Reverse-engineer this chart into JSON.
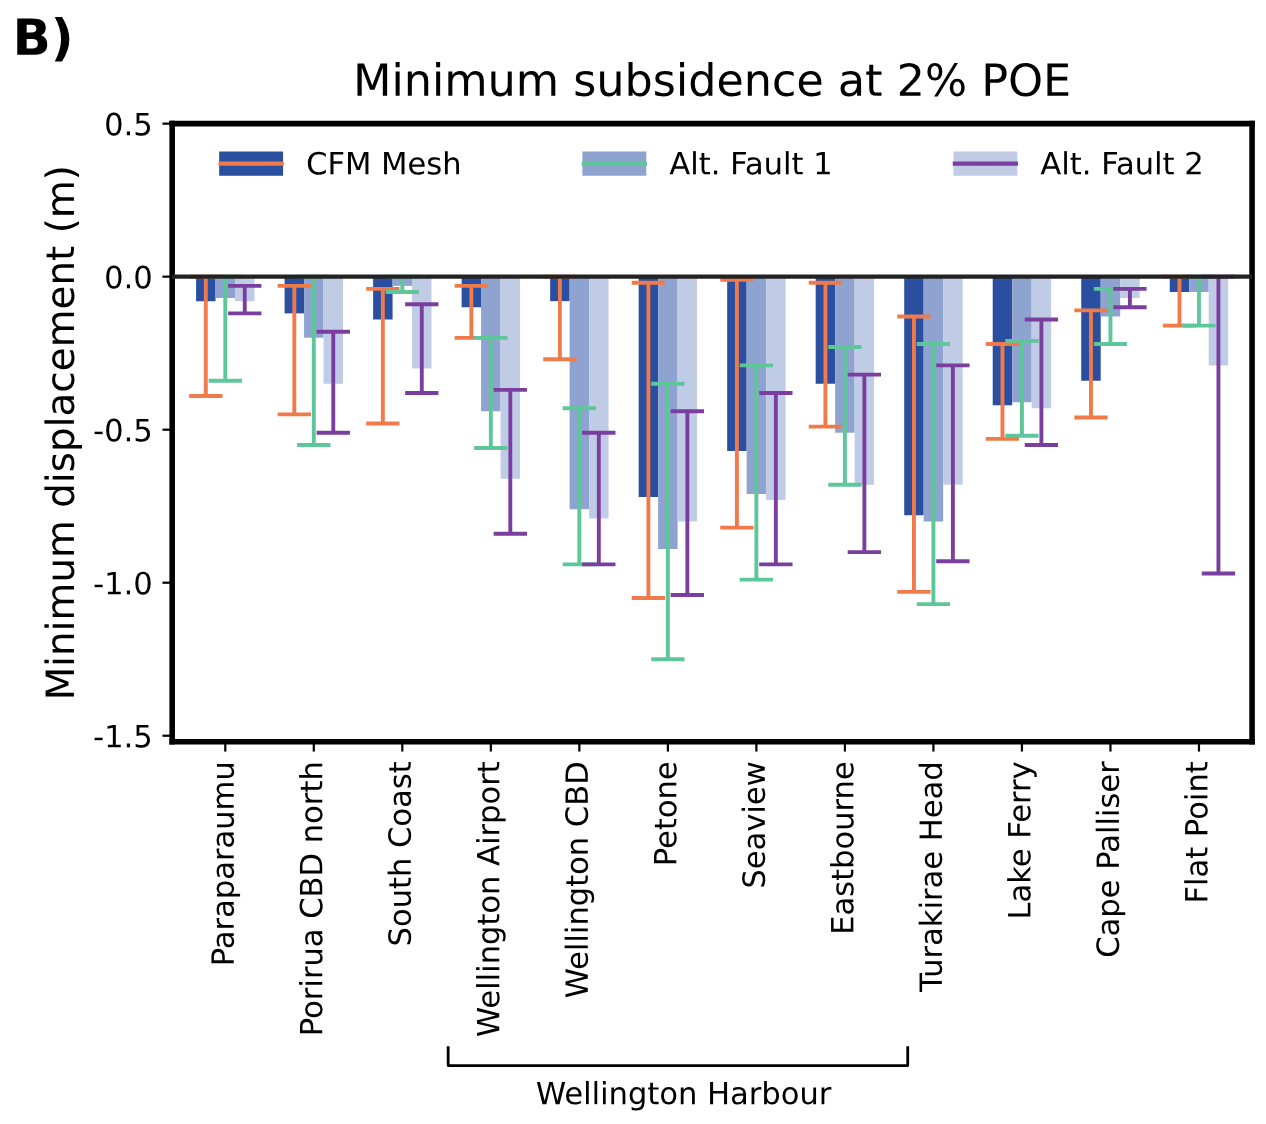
{
  "chart_data": {
    "type": "bar",
    "title": "Minimum subsidence at 2% POE",
    "ylabel": "Minimum displacement (m)",
    "categories": [
      "Paraparaumu",
      "Porirua CBD north",
      "South Coast",
      "Wellington Airport",
      "Wellington CBD",
      "Petone",
      "Seaview",
      "Eastbourne",
      "Turakirae Head",
      "Lake Ferry",
      "Cape Palliser",
      "Flat Point"
    ],
    "series": [
      {
        "name": "CFM Mesh",
        "color": "#2a4fa0",
        "values": [
          -0.08,
          -0.12,
          -0.14,
          -0.1,
          -0.08,
          -0.72,
          -0.57,
          -0.35,
          -0.78,
          -0.42,
          -0.34,
          -0.05
        ],
        "errors": [
          [
            -0.39,
            0
          ],
          [
            -0.45,
            -0.03
          ],
          [
            -0.48,
            -0.04
          ],
          [
            -0.2,
            -0.03
          ],
          [
            -0.27,
            0
          ],
          [
            -1.05,
            -0.02
          ],
          [
            -0.82,
            -0.01
          ],
          [
            -0.49,
            -0.02
          ],
          [
            -1.03,
            -0.13
          ],
          [
            -0.53,
            -0.22
          ],
          [
            -0.46,
            -0.11
          ],
          [
            -0.16,
            0
          ]
        ]
      },
      {
        "name": "Alt. Fault 1",
        "color": "#8fa3d0",
        "values": [
          -0.07,
          -0.2,
          -0.03,
          -0.44,
          -0.76,
          -0.89,
          -0.71,
          -0.51,
          -0.8,
          -0.41,
          -0.13,
          -0.05
        ],
        "errors": [
          [
            -0.34,
            0
          ],
          [
            -0.55,
            0
          ],
          [
            -0.05,
            0
          ],
          [
            -0.56,
            -0.2
          ],
          [
            -0.94,
            -0.43
          ],
          [
            -1.25,
            -0.35
          ],
          [
            -0.99,
            -0.29
          ],
          [
            -0.68,
            -0.23
          ],
          [
            -1.07,
            -0.22
          ],
          [
            -0.52,
            -0.21
          ],
          [
            -0.22,
            -0.04
          ],
          [
            -0.16,
            0
          ]
        ]
      },
      {
        "name": "Alt. Fault 2",
        "color": "#c0cce6",
        "values": [
          -0.08,
          -0.35,
          -0.3,
          -0.66,
          -0.79,
          -0.8,
          -0.73,
          -0.68,
          -0.68,
          -0.43,
          -0.07,
          -0.29
        ],
        "errors": [
          [
            -0.12,
            -0.03
          ],
          [
            -0.51,
            -0.18
          ],
          [
            -0.38,
            -0.09
          ],
          [
            -0.84,
            -0.37
          ],
          [
            -0.94,
            -0.51
          ],
          [
            -1.04,
            -0.44
          ],
          [
            -0.94,
            -0.38
          ],
          [
            -0.9,
            -0.32
          ],
          [
            -0.93,
            -0.29
          ],
          [
            -0.55,
            -0.14
          ],
          [
            -0.1,
            -0.04
          ],
          [
            -0.97,
            0
          ]
        ]
      }
    ],
    "ylim": [
      -1.52,
      0.5
    ],
    "yticks": [
      {
        "value": 0.5,
        "label": "0.5"
      },
      {
        "value": 0,
        "label": "0.0"
      },
      {
        "value": -0.5,
        "label": "-0.5"
      },
      {
        "value": -1,
        "label": "-1.0"
      },
      {
        "value": -1.5,
        "label": "-1.5"
      }
    ],
    "ref_lines": [
      {
        "axis": "y",
        "value": 0,
        "color": "#222222"
      }
    ],
    "legend": "top",
    "grid": false,
    "annotations": [
      "B)",
      "Wellington Harbour"
    ]
  }
}
